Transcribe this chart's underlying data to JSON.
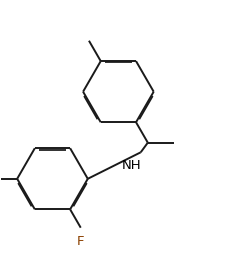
{
  "bg_color": "#ffffff",
  "line_color": "#1a1a1a",
  "f_color": "#8B4000",
  "nh_color": "#000000",
  "figsize": [
    2.25,
    2.54
  ],
  "dpi": 100,
  "lw": 1.4
}
